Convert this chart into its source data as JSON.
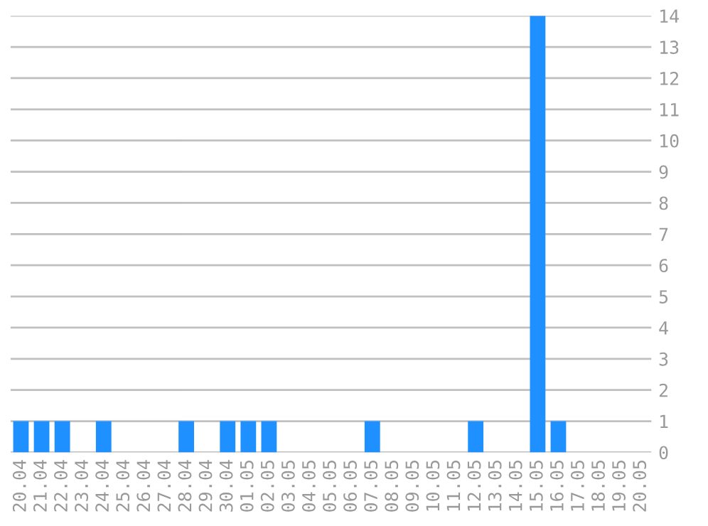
{
  "chart_data": {
    "type": "bar",
    "categories": [
      "20.04",
      "21.04",
      "22.04",
      "23.04",
      "24.04",
      "25.04",
      "26.04",
      "27.04",
      "28.04",
      "29.04",
      "30.04",
      "01.05",
      "02.05",
      "03.05",
      "04.05",
      "05.05",
      "06.05",
      "07.05",
      "08.05",
      "09.05",
      "10.05",
      "11.05",
      "12.05",
      "13.05",
      "14.05",
      "15.05",
      "16.05",
      "17.05",
      "18.05",
      "19.05",
      "20.05"
    ],
    "values": [
      1,
      1,
      1,
      0,
      1,
      0,
      0,
      0,
      1,
      0,
      1,
      1,
      1,
      0,
      0,
      0,
      0,
      1,
      0,
      0,
      0,
      0,
      1,
      0,
      0,
      14,
      1,
      0,
      0,
      0,
      0
    ],
    "color": "#1e90ff",
    "ylim": [
      0,
      14
    ],
    "yticks": [
      0,
      1,
      2,
      3,
      4,
      5,
      6,
      7,
      8,
      9,
      10,
      11,
      12,
      13,
      14
    ],
    "grid": "y",
    "legend": false
  }
}
